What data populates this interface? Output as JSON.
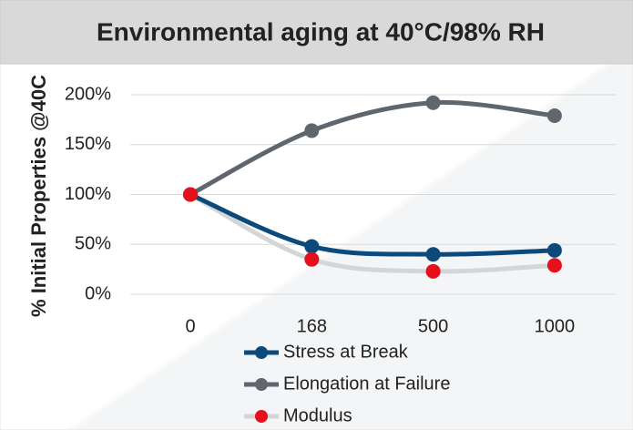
{
  "chart_data": {
    "type": "line",
    "title": "Environmental aging at 40°C/98% RH",
    "y_label": "% Initial Properties @40C",
    "categories": [
      "0",
      "168",
      "500",
      "1000"
    ],
    "series": [
      {
        "name": "Stress at Break",
        "color": "#0d4a7c",
        "values": [
          100,
          48,
          40,
          44
        ]
      },
      {
        "name": "Elongation at Failure",
        "color": "#5f666e",
        "values": [
          100,
          164,
          192,
          179
        ]
      },
      {
        "name": "Modulus",
        "color": "#d3d6d7",
        "marker_color": "#e5101c",
        "values": [
          100,
          35,
          23,
          29
        ]
      }
    ],
    "ylim": [
      0,
      200
    ],
    "yticks": [
      {
        "value": 0,
        "label": "0%"
      },
      {
        "value": 50,
        "label": "50%"
      },
      {
        "value": 100,
        "label": "100%"
      },
      {
        "value": 150,
        "label": "150%"
      },
      {
        "value": 200,
        "label": "200%"
      }
    ],
    "grid": true,
    "smooth": true,
    "legend": "bottom"
  }
}
